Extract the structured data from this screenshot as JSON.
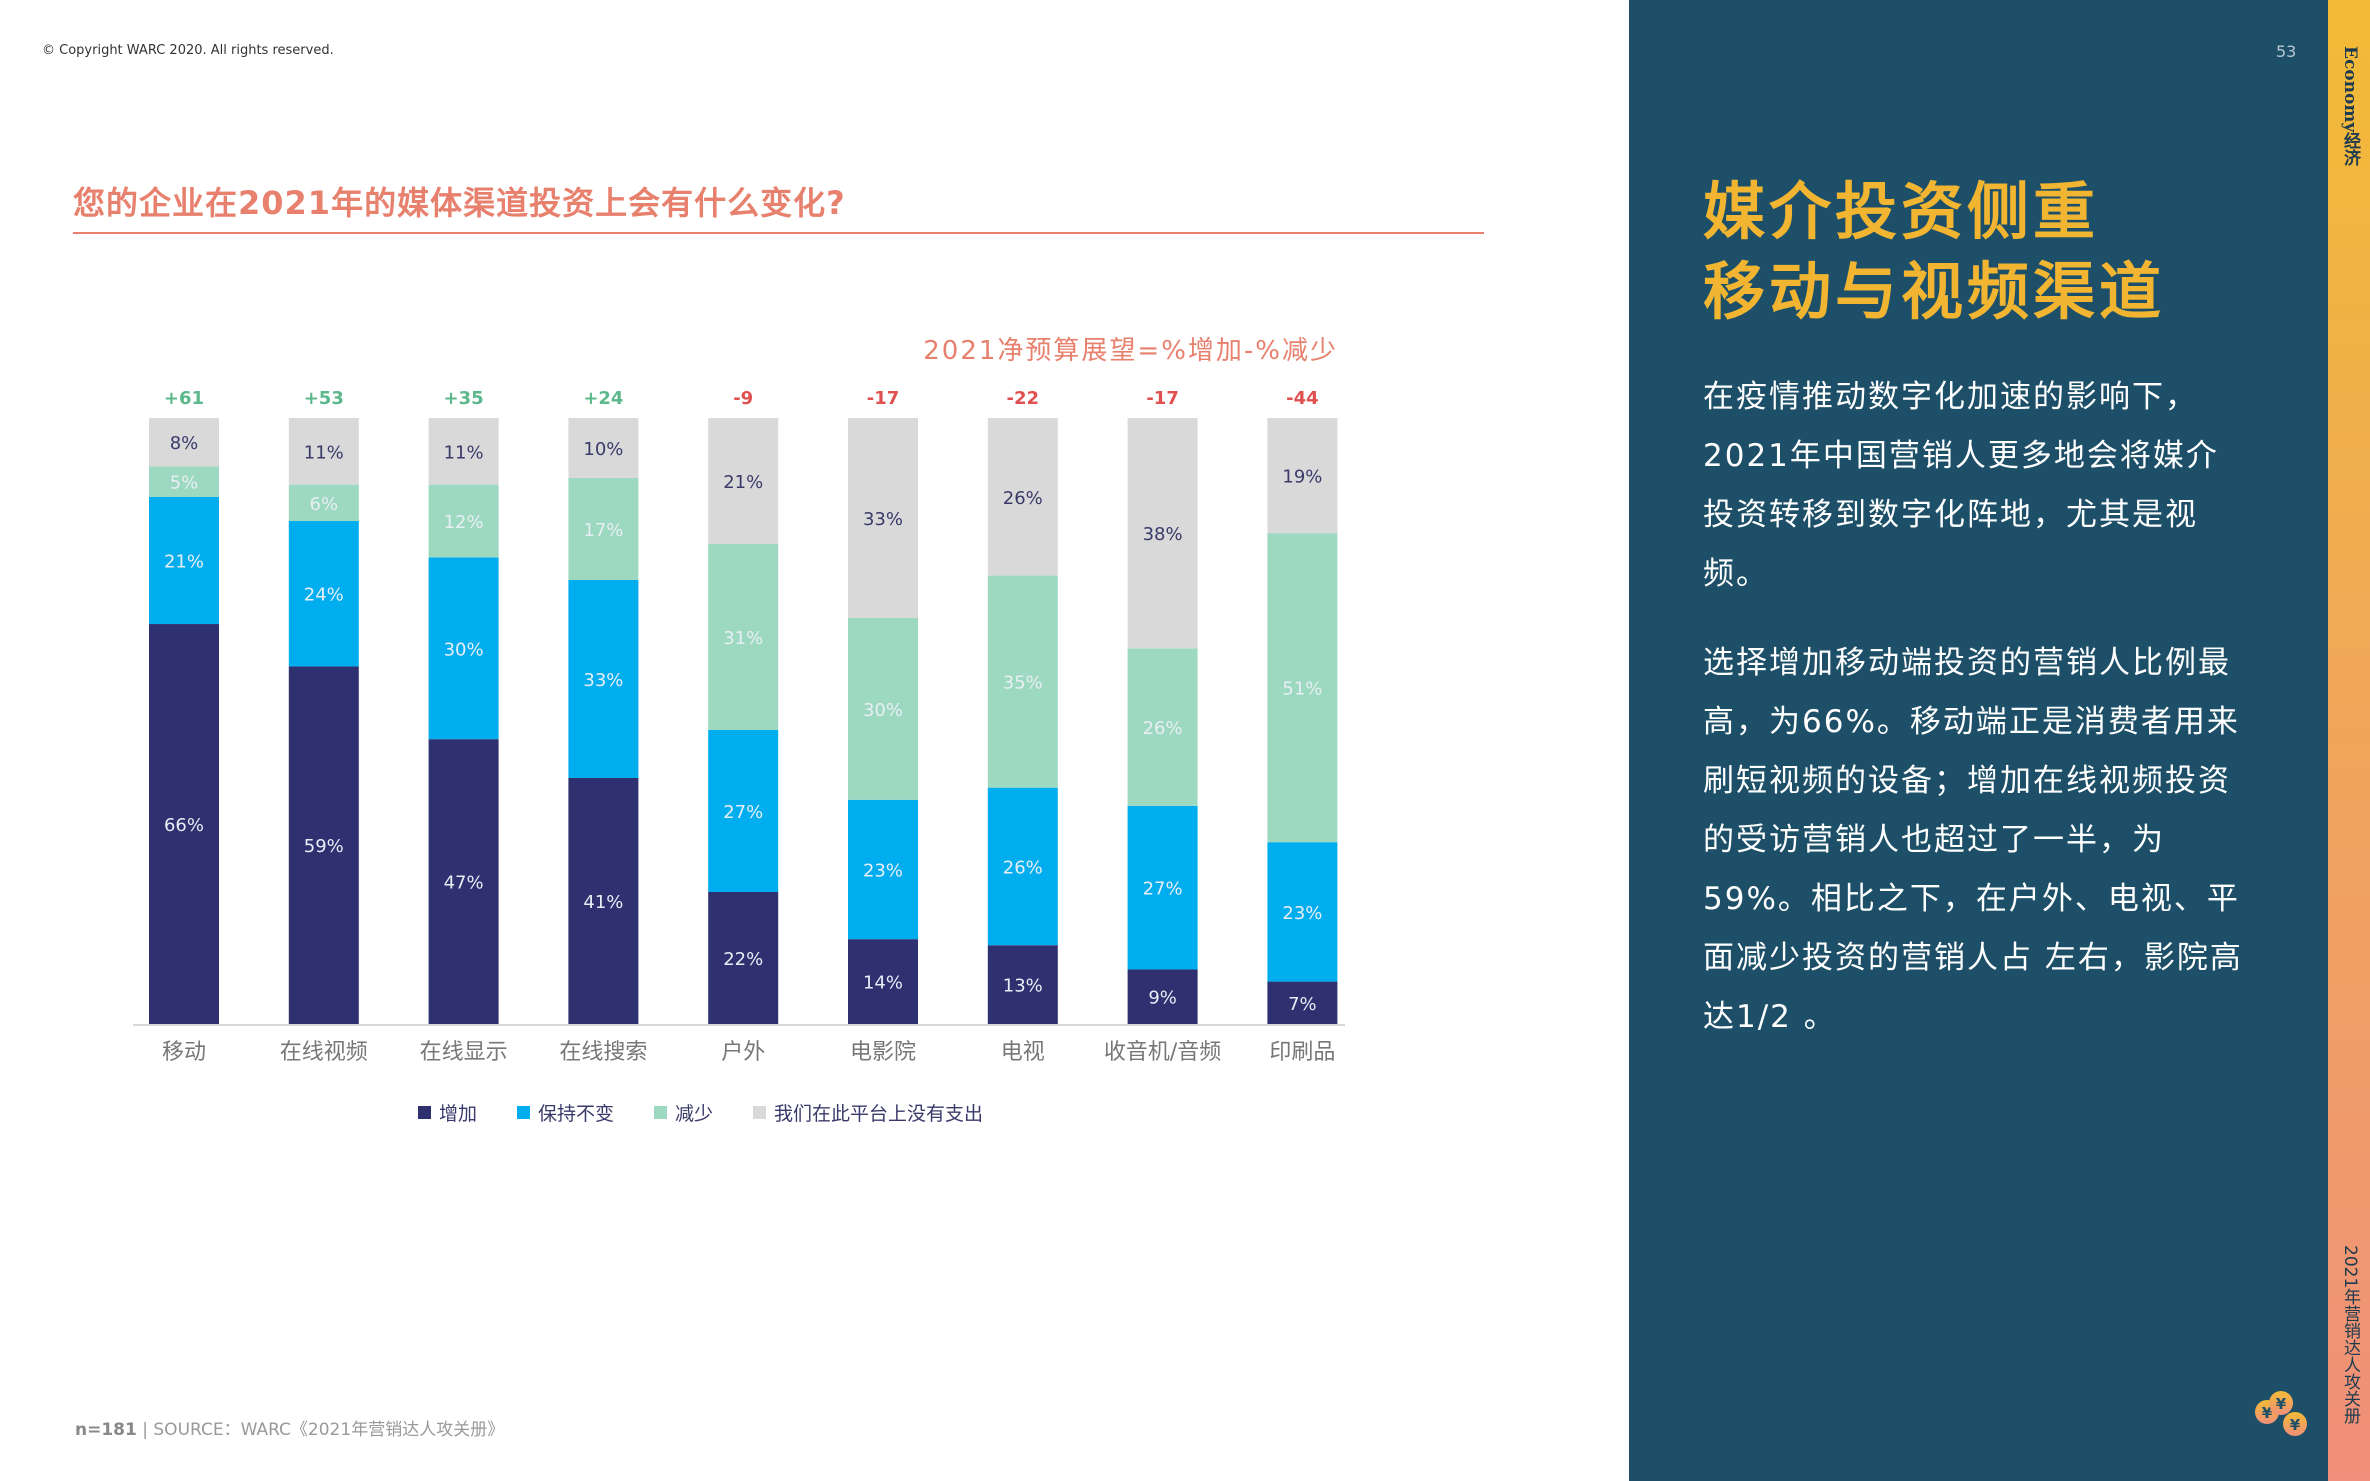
{
  "copyright": "© Copyright WARC 2020. All rights reserved.",
  "page_number": "53",
  "title": "您的企业在2021年的媒体渠道投资上会有什么变化?",
  "footer": {
    "n": "n=181",
    "source": "SOURCE：WARC《2021年营销达人攻关册》"
  },
  "side": {
    "section": "Economy经济",
    "book": "2021年营销达人攻关册",
    "headline_lines": [
      "媒介投资侧重",
      "移动与视频渠道"
    ],
    "paragraphs": [
      "在疫情推动数字化加速的影响下，2021年中国营销人更多地会将媒介投资转移到数字化阵地，尤其是视频。",
      "选择增加移动端投资的营销人比例最高，为66%。移动端正是消费者用来刷短视频的设备；增加在线视频投资的受访营销人也超过了一半，为59%。相比之下，在户外、电视、平面减少投资的营销人占 左右，影院高达1/2 。"
    ],
    "logo": "yuan-coins-logo"
  },
  "chart_data": {
    "type": "bar",
    "stacked": true,
    "title": "2021净预算展望=%增加-%减少",
    "categories": [
      "移动",
      "在线视频",
      "在线显示",
      "在线搜索",
      "户外",
      "电影院",
      "电视",
      "收音机/音频",
      "印刷品"
    ],
    "net": [
      "+61",
      "+53",
      "+35",
      "+24",
      "-9",
      "-17",
      "-22",
      "-17",
      "-44"
    ],
    "series": [
      {
        "name": "增加",
        "color": "#2e3070",
        "values": [
          66,
          59,
          47,
          41,
          22,
          14,
          13,
          9,
          7
        ]
      },
      {
        "name": "保持不变",
        "color": "#00aeef",
        "values": [
          21,
          24,
          30,
          33,
          27,
          23,
          26,
          27,
          23
        ]
      },
      {
        "name": "减少",
        "color": "#9dd9c0",
        "values": [
          5,
          6,
          12,
          17,
          31,
          30,
          35,
          26,
          51
        ]
      },
      {
        "name": "我们在此平台上没有支出",
        "color": "#d9d9d9",
        "values": [
          8,
          11,
          11,
          10,
          21,
          33,
          26,
          38,
          19
        ]
      }
    ],
    "colors": {
      "positive": "#5cb88a",
      "negative": "#e05050"
    },
    "legend_position": "bottom",
    "grid": false
  }
}
